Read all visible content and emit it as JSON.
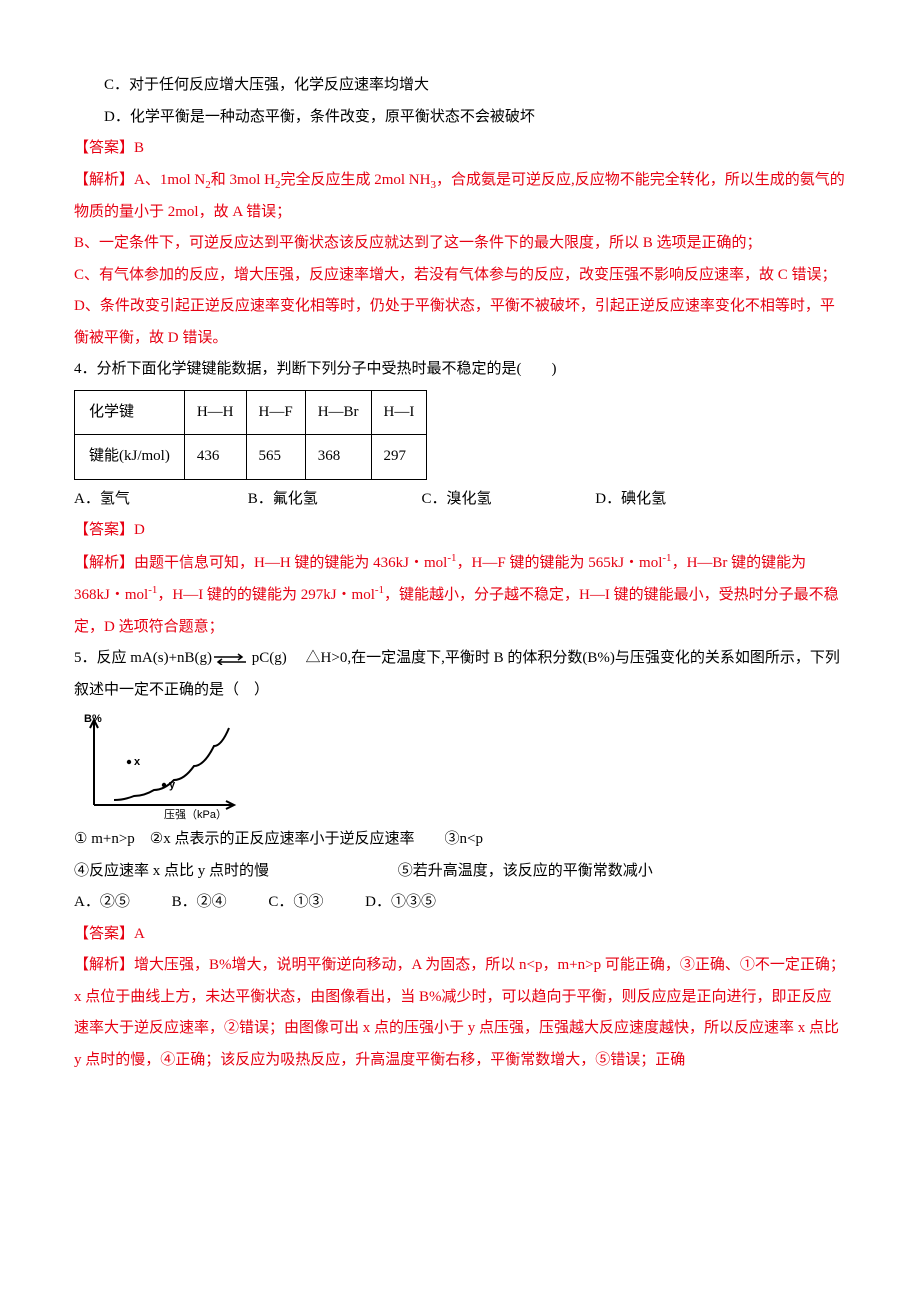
{
  "q3": {
    "optC": "C．对于任何反应增大压强，化学反应速率均增大",
    "optD": "D．化学平衡是一种动态平衡，条件改变，原平衡状态不会被破坏",
    "answer_label": "【答案】B",
    "explain_prefix": "【解析】",
    "explainA_1": "A、1mol N",
    "explainA_2": "和 3mol H",
    "explainA_3": "完全反应生成 2mol NH",
    "explainA_4": "，合成氨是可逆反应,反应物不能完全转化，所以生成的氨气的物质的量小于 2mol，故 A 错误；",
    "explainB": "B、一定条件下，可逆反应达到平衡状态该反应就达到了这一条件下的最大限度，所以 B 选项是正确的；",
    "explainC": "C、有气体参加的反应，增大压强，反应速率增大，若没有气体参与的反应，改变压强不影响反应速率，故 C 错误；",
    "explainD": "D、条件改变引起正逆反应速率变化相等时，仍处于平衡状态，平衡不被破坏，引起正逆反应速率变化不相等时，平衡被平衡，故 D 错误。"
  },
  "q4": {
    "stem": "4．分析下面化学键键能数据，判断下列分子中受热时最不稳定的是(　　)",
    "table": {
      "row1": [
        "化学键",
        "H—H",
        "H—F",
        "H—Br",
        "H—I"
      ],
      "row2": [
        "键能(kJ/mol)",
        "436",
        "565",
        "368",
        "297"
      ]
    },
    "optA": "A．氢气",
    "optB": "B．氟化氢",
    "optC": "C．溴化氢",
    "optD": "D．碘化氢",
    "answer_label": "【答案】D",
    "explain_prefix": "【解析】",
    "explain_1": "由题干信息可知，H—H 键的键能为 436kJ・mol",
    "explain_2": "，H—F 键的键能为 565kJ・mol",
    "explain_3": "，H—Br 键的键能为 368kJ・mol",
    "explain_4": "，H—I 键的的键能为 297kJ・mol",
    "explain_5": "，键能越小，分子越不稳定，H—I 键的键能最小，受热时分子最不稳定，D 选项符合题意；"
  },
  "q5": {
    "stem_1": "5．反应 mA(s)+nB(g)",
    "stem_2": " pC(g)　 △H>0,在一定温度下,平衡时 B 的体积分数(B%)与压强变化的关系如图所示，下列叙述中一定不正确的是（　）",
    "chart": {
      "y_label": "B%",
      "x_label": "压强（kPa）",
      "pt_x": "x",
      "pt_y": "y",
      "color": "#000000",
      "background": "#ffffff",
      "line_width": 2,
      "curve_points": [
        [
          40,
          90
        ],
        [
          60,
          86
        ],
        [
          80,
          80
        ],
        [
          100,
          70
        ],
        [
          120,
          56
        ],
        [
          140,
          36
        ],
        [
          155,
          18
        ]
      ]
    },
    "line1": "① m+n>p　②x 点表示的正反应速率小于逆反应速率　　③n<p",
    "line2a": "④反应速率 x 点比 y 点时的慢",
    "line2b": "⑤若升高温度，该反应的平衡常数减小",
    "optA": "A．②⑤",
    "optB": "B．②④",
    "optC": "C．①③",
    "optD": "D．①③⑤",
    "answer_label": "【答案】A",
    "explain_prefix": "【解析】",
    "explain": "增大压强，B%增大，说明平衡逆向移动，A 为固态，所以 n<p，m+n>p 可能正确，③正确、①不一定正确；x 点位于曲线上方，未达平衡状态，由图像看出，当 B%减少时，可以趋向于平衡，则反应应是正向进行，即正反应速率大于逆反应速率，②错误；由图像可出 x 点的压强小于 y 点压强，压强越大反应速度越快，所以反应速率 x 点比 y 点时的慢，④正确；该反应为吸热反应，升高温度平衡右移，平衡常数增大，⑤错误；正确"
  },
  "sym": {
    "sub2": "2",
    "sub3": "3",
    "sup_neg1": "-1"
  }
}
